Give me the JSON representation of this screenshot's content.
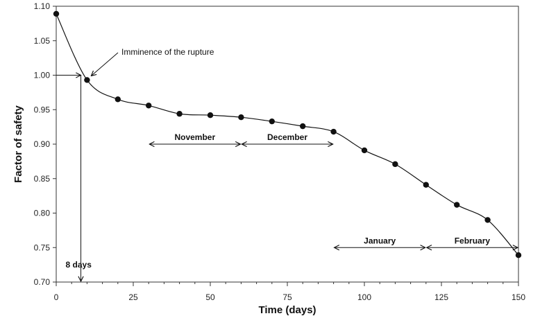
{
  "chart_data": {
    "type": "line",
    "title": "",
    "xlabel": "Time (days)",
    "ylabel": "Factor of safety",
    "xlim": [
      0,
      150
    ],
    "ylim": [
      0.7,
      1.1
    ],
    "x_ticks": [
      0,
      25,
      50,
      75,
      100,
      125,
      150
    ],
    "x_tick_labels": [
      "0",
      "25",
      "50",
      "75",
      "100",
      "125",
      "150"
    ],
    "y_ticks": [
      0.7,
      0.75,
      0.8,
      0.85,
      0.9,
      0.95,
      1.0,
      1.05,
      1.1
    ],
    "y_tick_labels": [
      "0.70",
      "0.75",
      "0.80",
      "0.85",
      "0.90",
      "0.95",
      "1.00",
      "1.05",
      "1.10"
    ],
    "grid": false,
    "legend": "none",
    "series": [
      {
        "x": [
          0,
          10,
          20,
          30,
          40,
          50,
          60,
          70,
          80,
          90,
          100,
          110,
          120,
          130,
          140,
          150
        ],
        "y": [
          1.089,
          0.993,
          0.965,
          0.956,
          0.944,
          0.942,
          0.939,
          0.933,
          0.926,
          0.918,
          0.891,
          0.871,
          0.841,
          0.812,
          0.79,
          0.739
        ]
      }
    ],
    "annotations": {
      "rupture": {
        "label": "Imminence of the rupture",
        "x": 10,
        "y": 0.993
      },
      "marker": {
        "label": "8 days",
        "x": 8,
        "y": 1.0
      },
      "periods": [
        {
          "label": "November",
          "x_start": 30,
          "x_end": 60,
          "y": 0.9
        },
        {
          "label": "December",
          "x_start": 60,
          "x_end": 90,
          "y": 0.9
        },
        {
          "label": "January",
          "x_start": 90,
          "x_end": 120,
          "y": 0.75
        },
        {
          "label": "February",
          "x_start": 120,
          "x_end": 150,
          "y": 0.75
        }
      ]
    }
  }
}
